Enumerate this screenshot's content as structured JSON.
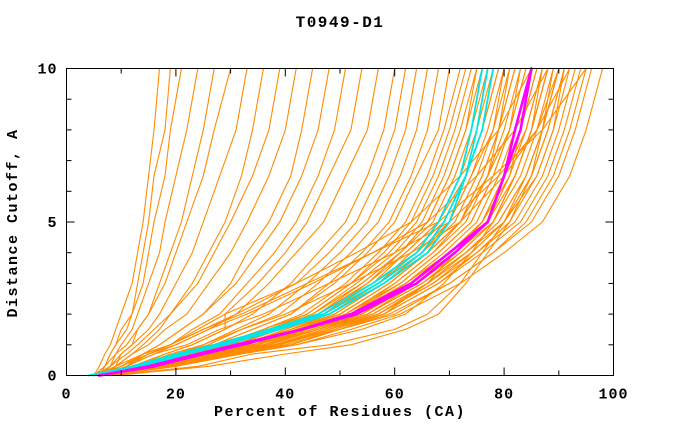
{
  "window": {
    "title": "T0949-D1"
  },
  "chart_data": {
    "type": "line",
    "title": "T0949-D1",
    "xlabel": "Percent of Residues (CA)",
    "ylabel": "Distance Cutoff, A",
    "xlim": [
      0,
      100
    ],
    "ylim": [
      0,
      10
    ],
    "x_major_ticks": [
      0,
      20,
      40,
      60,
      80,
      100
    ],
    "x_minor_step": 10,
    "y_major_ticks": [
      0,
      5,
      10
    ],
    "y_minor_step": 1,
    "grid": "off",
    "legend": "none",
    "colors": {
      "models": "#ff8c00",
      "cyan": "#00e6e6",
      "magenta": "#ff00ff",
      "axis": "#000000"
    },
    "y_grid": [
      0,
      0.3,
      0.7,
      1,
      1.5,
      2,
      3,
      4,
      5,
      6.5,
      8,
      10
    ],
    "series": [
      {
        "group": "models",
        "x": [
          5,
          6,
          7,
          8,
          9,
          10,
          12,
          13,
          14,
          15,
          16,
          17
        ]
      },
      {
        "group": "models",
        "x": [
          6,
          7,
          8,
          9,
          10,
          12,
          13,
          14,
          15,
          16,
          18,
          19
        ]
      },
      {
        "group": "models",
        "x": [
          5,
          7,
          8,
          9,
          11,
          12,
          14,
          15,
          16,
          18,
          19,
          21
        ]
      },
      {
        "group": "models",
        "x": [
          6,
          8,
          9,
          10,
          12,
          13,
          15,
          17,
          18,
          20,
          22,
          24
        ]
      },
      {
        "group": "models",
        "x": [
          7,
          9,
          10,
          12,
          13,
          15,
          17,
          19,
          21,
          23,
          25,
          27
        ]
      },
      {
        "group": "models",
        "x": [
          5,
          7,
          9,
          11,
          13,
          15,
          18,
          20,
          22,
          25,
          27,
          30
        ]
      },
      {
        "group": "models",
        "x": [
          6,
          8,
          10,
          12,
          15,
          17,
          20,
          23,
          25,
          28,
          31,
          33
        ]
      },
      {
        "group": "models",
        "x": [
          7,
          9,
          12,
          14,
          17,
          19,
          23,
          26,
          29,
          32,
          34,
          36
        ]
      },
      {
        "group": "models",
        "x": [
          5,
          8,
          11,
          13,
          16,
          19,
          24,
          27,
          30,
          34,
          37,
          39
        ]
      },
      {
        "group": "models",
        "x": [
          6,
          9,
          12,
          15,
          18,
          22,
          26,
          30,
          33,
          37,
          40,
          42
        ]
      },
      {
        "group": "models",
        "x": [
          8,
          11,
          14,
          17,
          21,
          25,
          30,
          33,
          37,
          41,
          43,
          45
        ]
      },
      {
        "group": "models",
        "x": [
          6,
          10,
          14,
          17,
          21,
          25,
          31,
          35,
          39,
          43,
          46,
          48
        ]
      },
      {
        "group": "models",
        "x": [
          7,
          11,
          15,
          19,
          23,
          28,
          33,
          38,
          42,
          46,
          49,
          51
        ]
      },
      {
        "group": "models",
        "x": [
          5,
          10,
          15,
          19,
          24,
          29,
          35,
          40,
          44,
          48,
          52,
          54
        ]
      },
      {
        "group": "models",
        "x": [
          6,
          11,
          16,
          20,
          26,
          31,
          37,
          42,
          47,
          51,
          55,
          57
        ]
      },
      {
        "group": "models",
        "x": [
          7,
          13,
          18,
          23,
          29,
          34,
          41,
          46,
          51,
          55,
          58,
          60
        ]
      },
      {
        "group": "models",
        "x": [
          5,
          12,
          18,
          23,
          29,
          29,
          42,
          48,
          53,
          57,
          60,
          62
        ]
      },
      {
        "group": "models",
        "x": [
          8,
          14,
          20,
          25,
          31,
          37,
          44,
          50,
          55,
          59,
          62,
          64
        ]
      },
      {
        "group": "models",
        "x": [
          6,
          13,
          20,
          26,
          32,
          39,
          46,
          52,
          57,
          61,
          64,
          66
        ]
      },
      {
        "group": "models",
        "x": [
          7,
          14,
          21,
          27,
          34,
          41,
          48,
          54,
          59,
          63,
          66,
          68
        ]
      },
      {
        "group": "models",
        "x": [
          5,
          13,
          21,
          27,
          34,
          41,
          49,
          55,
          60,
          64,
          68,
          70
        ]
      },
      {
        "group": "models",
        "x": [
          6,
          14,
          22,
          28,
          36,
          43,
          51,
          57,
          62,
          66,
          69,
          72
        ]
      },
      {
        "group": "models",
        "x": [
          8,
          16,
          24,
          30,
          37,
          44,
          52,
          58,
          63,
          67,
          70,
          73
        ]
      },
      {
        "group": "models",
        "x": [
          5,
          14,
          22,
          29,
          36,
          44,
          52,
          59,
          64,
          68,
          71,
          74
        ]
      },
      {
        "group": "models",
        "x": [
          6,
          15,
          23,
          30,
          37,
          45,
          53,
          60,
          65,
          69,
          72,
          75
        ]
      },
      {
        "group": "models",
        "x": [
          7,
          15,
          24,
          31,
          38,
          46,
          54,
          61,
          66,
          70,
          73,
          76
        ]
      },
      {
        "group": "models",
        "x": [
          5,
          14,
          23,
          30,
          38,
          45,
          54,
          61,
          67,
          71,
          74,
          77
        ]
      },
      {
        "group": "models",
        "x": [
          6,
          15,
          24,
          31,
          39,
          47,
          56,
          62,
          68,
          72,
          75,
          78
        ]
      },
      {
        "group": "models",
        "x": [
          8,
          17,
          26,
          33,
          41,
          48,
          57,
          63,
          69,
          73,
          76,
          79
        ]
      },
      {
        "group": "models",
        "x": [
          5,
          15,
          24,
          32,
          40,
          48,
          57,
          64,
          70,
          74,
          77,
          80
        ]
      },
      {
        "group": "models",
        "x": [
          7,
          16,
          25,
          33,
          41,
          49,
          58,
          65,
          70,
          74,
          78,
          80
        ]
      },
      {
        "group": "models",
        "x": [
          6,
          15,
          25,
          33,
          41,
          49,
          58,
          65,
          71,
          75,
          78,
          81
        ]
      },
      {
        "group": "models",
        "x": [
          8,
          17,
          27,
          34,
          42,
          50,
          59,
          66,
          72,
          76,
          79,
          82
        ]
      },
      {
        "group": "models",
        "x": [
          5,
          15,
          25,
          33,
          41,
          50,
          59,
          66,
          72,
          76,
          79,
          82
        ]
      },
      {
        "group": "models",
        "x": [
          6,
          16,
          26,
          34,
          42,
          51,
          60,
          67,
          73,
          77,
          80,
          83
        ]
      },
      {
        "group": "models",
        "x": [
          7,
          17,
          27,
          35,
          43,
          52,
          61,
          68,
          74,
          78,
          81,
          84
        ]
      },
      {
        "group": "models",
        "x": [
          5,
          16,
          26,
          34,
          43,
          51,
          61,
          68,
          74,
          78,
          81,
          84
        ]
      },
      {
        "group": "models",
        "x": [
          6,
          16,
          26,
          35,
          43,
          52,
          62,
          69,
          75,
          79,
          82,
          85
        ]
      },
      {
        "group": "models",
        "x": [
          8,
          18,
          28,
          36,
          45,
          53,
          63,
          70,
          76,
          80,
          83,
          86
        ]
      },
      {
        "group": "models",
        "x": [
          5,
          16,
          27,
          35,
          44,
          53,
          62,
          70,
          76,
          80,
          83,
          86
        ]
      },
      {
        "group": "models",
        "x": [
          6,
          17,
          27,
          36,
          45,
          54,
          63,
          71,
          77,
          81,
          84,
          87
        ]
      },
      {
        "group": "models",
        "x": [
          7,
          18,
          28,
          37,
          46,
          55,
          64,
          72,
          78,
          82,
          85,
          88
        ]
      },
      {
        "group": "models",
        "x": [
          5,
          17,
          27,
          36,
          45,
          54,
          64,
          71,
          78,
          82,
          85,
          88
        ]
      },
      {
        "group": "models",
        "x": [
          6,
          17,
          28,
          37,
          46,
          55,
          65,
          72,
          78,
          83,
          86,
          89
        ]
      },
      {
        "group": "models",
        "x": [
          8,
          19,
          30,
          38,
          47,
          56,
          66,
          73,
          79,
          84,
          87,
          90
        ]
      },
      {
        "group": "models",
        "x": [
          5,
          17,
          28,
          37,
          46,
          56,
          66,
          73,
          79,
          84,
          87,
          90
        ]
      },
      {
        "group": "models",
        "x": [
          6,
          18,
          29,
          38,
          47,
          57,
          67,
          74,
          80,
          85,
          88,
          91
        ]
      },
      {
        "group": "models",
        "x": [
          7,
          19,
          30,
          39,
          48,
          58,
          68,
          75,
          81,
          86,
          89,
          92
        ]
      },
      {
        "group": "models",
        "x": [
          5,
          18,
          29,
          38,
          48,
          57,
          67,
          75,
          82,
          87,
          90,
          93
        ]
      },
      {
        "group": "models",
        "x": [
          6,
          18,
          30,
          39,
          49,
          58,
          68,
          76,
          83,
          88,
          91,
          94
        ]
      },
      {
        "group": "models",
        "x": [
          8,
          20,
          31,
          41,
          50,
          60,
          70,
          78,
          84,
          89,
          92,
          95
        ]
      },
      {
        "group": "models",
        "x": [
          6,
          19,
          30,
          40,
          50,
          59,
          70,
          78,
          85,
          90,
          93,
          96
        ]
      },
      {
        "group": "models",
        "x": [
          7,
          20,
          32,
          42,
          52,
          61,
          72,
          80,
          87,
          92,
          95,
          98
        ]
      },
      {
        "group": "models",
        "x": [
          6,
          10,
          15,
          20,
          26,
          33,
          45,
          56,
          66,
          75,
          82,
          88
        ]
      },
      {
        "group": "models",
        "x": [
          7,
          11,
          16,
          22,
          28,
          36,
          48,
          60,
          70,
          79,
          86,
          92
        ]
      },
      {
        "group": "models",
        "x": [
          5,
          9,
          14,
          19,
          25,
          32,
          44,
          56,
          68,
          78,
          87,
          95
        ]
      },
      {
        "group": "models",
        "x": [
          8,
          13,
          19,
          25,
          32,
          40,
          52,
          63,
          72,
          80,
          86,
          90
        ]
      },
      {
        "group": "models",
        "x": [
          6,
          10,
          14,
          19,
          25,
          31,
          42,
          53,
          63,
          72,
          79,
          85
        ]
      },
      {
        "group": "models",
        "x": [
          8,
          24,
          34,
          48,
          60,
          66,
          72,
          76,
          80,
          84,
          87,
          90
        ]
      },
      {
        "group": "models",
        "x": [
          7,
          18,
          30,
          42,
          54,
          62,
          69,
          74,
          78,
          82,
          85,
          88
        ]
      },
      {
        "group": "models",
        "x": [
          6,
          16,
          28,
          38,
          50,
          58,
          66,
          71,
          76,
          80,
          84,
          87
        ]
      },
      {
        "group": "models",
        "x": [
          9,
          26,
          40,
          52,
          62,
          68,
          73,
          77,
          81,
          85,
          88,
          91
        ]
      },
      {
        "group": "models",
        "x": [
          7,
          16,
          25,
          33,
          40,
          47,
          55,
          61,
          66,
          70,
          73,
          75
        ]
      },
      {
        "group": "models",
        "x": [
          5,
          13,
          22,
          30,
          38,
          46,
          55,
          62,
          68,
          73,
          76,
          79
        ]
      },
      {
        "group": "models",
        "x": [
          8,
          18,
          28,
          36,
          44,
          52,
          60,
          67,
          72,
          77,
          79,
          81
        ]
      },
      {
        "group": "models",
        "x": [
          6,
          15,
          24,
          32,
          41,
          50,
          59,
          66,
          72,
          77,
          81,
          83
        ]
      },
      {
        "group": "models",
        "x": [
          7,
          17,
          28,
          37,
          46,
          54,
          63,
          70,
          76,
          81,
          83,
          85
        ]
      },
      {
        "group": "models",
        "x": [
          5,
          15,
          25,
          34,
          44,
          53,
          62,
          70,
          77,
          82,
          85,
          87
        ]
      },
      {
        "group": "models",
        "x": [
          7,
          18,
          29,
          39,
          48,
          57,
          66,
          74,
          80,
          85,
          87,
          89
        ]
      },
      {
        "group": "models",
        "x": [
          6,
          16,
          27,
          36,
          46,
          55,
          65,
          73,
          80,
          86,
          89,
          91
        ]
      },
      {
        "group": "cyan",
        "x": [
          5,
          13,
          21,
          28,
          38,
          47,
          57,
          65,
          69,
          73,
          75,
          77
        ]
      },
      {
        "group": "cyan",
        "x": [
          6,
          14,
          22,
          29,
          39,
          48,
          58,
          66,
          70,
          73,
          76,
          78
        ]
      },
      {
        "group": "cyan",
        "x": [
          4,
          12,
          20,
          27,
          37,
          46,
          56,
          64,
          68,
          72,
          74,
          76
        ]
      },
      {
        "group": "magenta",
        "x": [
          6,
          15,
          24,
          31,
          43,
          52,
          63,
          70,
          77,
          80,
          82,
          85
        ]
      },
      {
        "group": "magenta",
        "x": [
          6,
          16,
          25,
          32,
          43,
          53,
          64,
          71,
          77,
          80,
          83,
          85
        ]
      }
    ]
  }
}
